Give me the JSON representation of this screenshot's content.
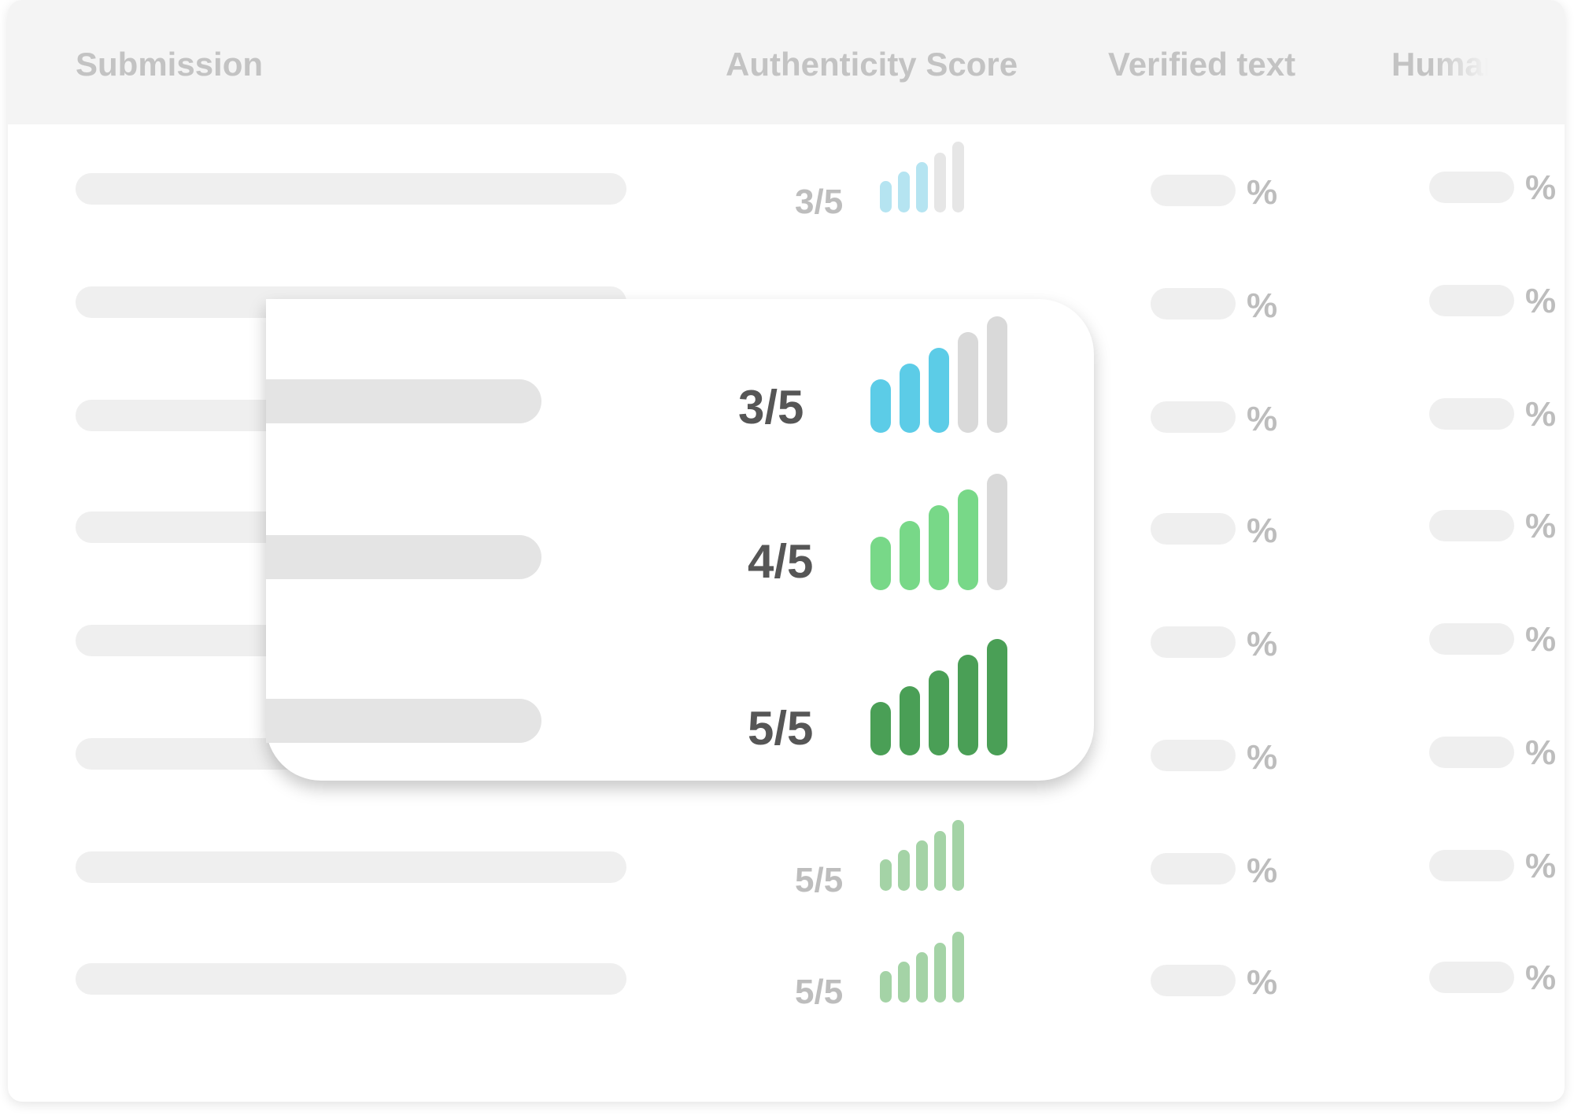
{
  "table": {
    "headers": {
      "submission": "Submission",
      "authenticity_score": "Authenticity Score",
      "verified_text": "Verified text",
      "human": "Human"
    },
    "rows": [
      {
        "score": "3/5",
        "level": 3,
        "color": "#b5e4f1",
        "verified_pct": "%",
        "human_pct": "%"
      },
      {
        "score": "",
        "level": 0,
        "color": "",
        "verified_pct": "%",
        "human_pct": "%"
      },
      {
        "score": "",
        "level": 0,
        "color": "",
        "verified_pct": "%",
        "human_pct": "%"
      },
      {
        "score": "",
        "level": 0,
        "color": "",
        "verified_pct": "%",
        "human_pct": "%"
      },
      {
        "score": "",
        "level": 0,
        "color": "",
        "verified_pct": "%",
        "human_pct": "%"
      },
      {
        "score": "5/5",
        "level": 5,
        "color": "#a4d3a6",
        "verified_pct": "%",
        "human_pct": "%"
      },
      {
        "score": "5/5",
        "level": 5,
        "color": "#a4d3a6",
        "verified_pct": "%",
        "human_pct": "%"
      },
      {
        "score": "5/5",
        "level": 5,
        "color": "#a4d3a6",
        "verified_pct": "%",
        "human_pct": "%"
      }
    ],
    "bar_empty_color": "#e6e6e6"
  },
  "popup": {
    "items": [
      {
        "score": "3/5",
        "level": 3,
        "color": "#5ccce7"
      },
      {
        "score": "4/5",
        "level": 4,
        "color": "#78d888"
      },
      {
        "score": "5/5",
        "level": 5,
        "color": "#4a9f56"
      }
    ],
    "bar_empty_color": "#d9d9d9"
  }
}
